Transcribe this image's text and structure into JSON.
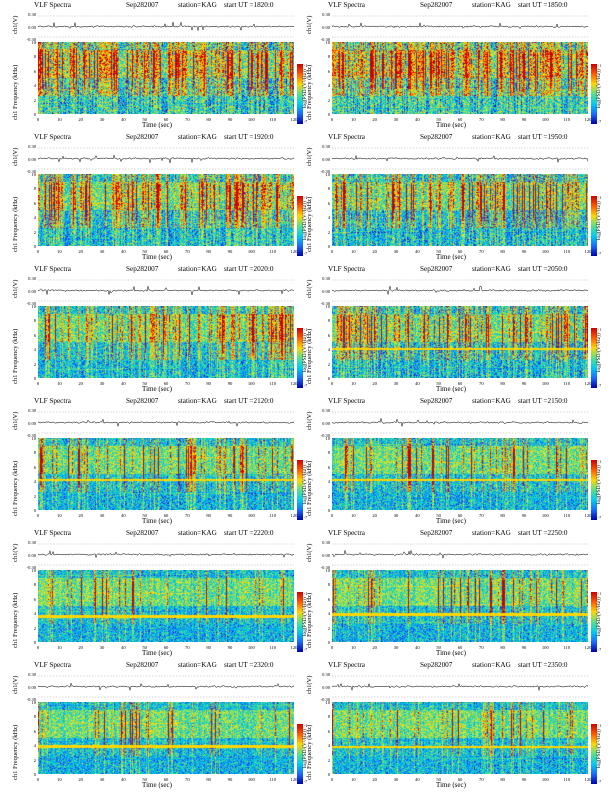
{
  "header": {
    "title": "VLF Spectra",
    "date": "Sep282007",
    "station": "station=KAG",
    "start_prefix": "start UT ="
  },
  "labels": {
    "signal_axis": "ch1(V)",
    "freq_axis_prefix": "ch1",
    "freq_axis": "Frequency (kHz)",
    "time_axis": "Time (sec)",
    "colorbar": "log(PSD/(V²/Hz))"
  },
  "signal_ticks": [
    "0.30",
    "0.00",
    "-0.30"
  ],
  "freq_ticks": [
    "10",
    "8",
    "6",
    "4",
    "2",
    "0"
  ],
  "colorbar_ticks": [
    "-1",
    "-7"
  ],
  "panels": [
    {
      "start_ut": "1820:0",
      "density": 0.58,
      "noise": 0.3,
      "line_khz": null
    },
    {
      "start_ut": "1850:0",
      "density": 0.56,
      "noise": 0.3,
      "line_khz": null
    },
    {
      "start_ut": "1920:0",
      "density": 0.4,
      "noise": 0.2,
      "line_khz": null
    },
    {
      "start_ut": "1950:0",
      "density": 0.38,
      "noise": 0.2,
      "line_khz": null
    },
    {
      "start_ut": "2020:0",
      "density": 0.35,
      "noise": 0.12,
      "line_khz": null
    },
    {
      "start_ut": "2050:0",
      "density": 0.33,
      "noise": 0.18,
      "line_khz": 4.1
    },
    {
      "start_ut": "2120:0",
      "density": 0.2,
      "noise": 0.1,
      "line_khz": 4.2
    },
    {
      "start_ut": "2150:0",
      "density": 0.2,
      "noise": 0.1,
      "line_khz": 4.2
    },
    {
      "start_ut": "2220:0",
      "density": 0.16,
      "noise": 0.08,
      "line_khz": 3.6
    },
    {
      "start_ut": "2250:0",
      "density": 0.15,
      "noise": 0.08,
      "line_khz": 3.9
    },
    {
      "start_ut": "2320:0",
      "density": 0.14,
      "noise": 0.08,
      "line_khz": 3.9
    },
    {
      "start_ut": "2350:0",
      "density": 0.14,
      "noise": 0.08,
      "line_khz": 3.8
    }
  ],
  "chart_data": {
    "type": "heatmap",
    "title": "VLF Spectra",
    "xlabel": "Time (sec)",
    "ylabel": "Frequency (kHz)",
    "colorbar_label": "log(PSD/(V²/Hz))",
    "x_range": [
      0,
      120
    ],
    "y_range": [
      0,
      10
    ],
    "signal_range": [
      -0.3,
      0.3
    ],
    "x_ticks": [
      0,
      10,
      20,
      30,
      40,
      50,
      60,
      70,
      80,
      90,
      100,
      110,
      120
    ],
    "y_ticks": [
      0,
      2,
      4,
      6,
      8,
      10
    ],
    "panel_start_times": [
      "1820:0",
      "1850:0",
      "1920:0",
      "1950:0",
      "2020:0",
      "2050:0",
      "2120:0",
      "2150:0",
      "2220:0",
      "2250:0",
      "2320:0",
      "2350:0"
    ]
  }
}
